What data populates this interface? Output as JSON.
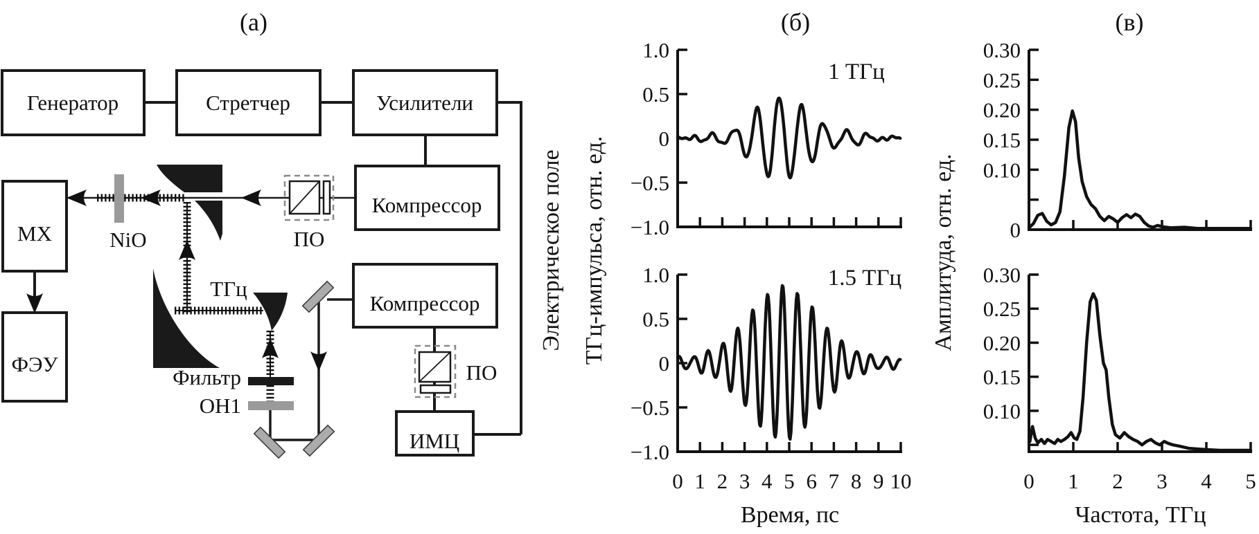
{
  "figure": {
    "panel_a_title": "(а)",
    "panel_b_title": "(б)",
    "panel_v_title": "(в)"
  },
  "diagram": {
    "generator": "Генератор",
    "stretcher": "Стретчер",
    "amplifiers": "Усилители",
    "compressor_top": "Компрессор",
    "compressor_bottom": "Компрессор",
    "mx": "МХ",
    "pmt": "ФЭУ",
    "imc": "ИМЦ",
    "nio": "NiO",
    "po_top": "ПО",
    "po_bottom": "ПО",
    "thz": "ТГц",
    "filter": "Фильтр",
    "oh1": "ОН1"
  },
  "chart_data": [
    {
      "panel": "(б)",
      "type": "line",
      "xlabel": "Время, пс",
      "ylabel": "Электрическое поле ТГц-импульса, отн. ед.",
      "ylabel_lines": [
        "Электрическое поле",
        "ТГц-импульса, отн. ед."
      ],
      "xlim": [
        0,
        10
      ],
      "xticks": [
        0,
        1,
        2,
        3,
        4,
        5,
        6,
        7,
        8,
        9,
        10
      ],
      "xtick_labels": [
        "0",
        "1",
        "2",
        "3",
        "4",
        "5",
        "6",
        "7",
        "8",
        "9",
        "10"
      ],
      "ylim": [
        -1,
        1
      ],
      "yticks": [
        1.0,
        0.5,
        0,
        -0.5,
        -1.0
      ],
      "ytick_labels": [
        "1.0",
        "0.5",
        "0",
        "−0.5",
        "−1.0"
      ],
      "grid": false,
      "plots": [
        {
          "annotation": "1 ТГц",
          "peak_field": 0.45,
          "min_field": -0.47,
          "signal": {
            "kind": "gaussian_wave_packet",
            "carrier_THz": 1.0,
            "carrier_center_ps": 4.55,
            "envelope_gaussians": [
              {
                "amp": 0.34,
                "center_ps": 4.55,
                "sigma_ps": 1.45
              },
              {
                "amp": 0.15,
                "center_ps": 5.2,
                "sigma_ps": 2.9
              }
            ],
            "noise": [
              {
                "amp": 0.018,
                "w": 9.1,
                "phase": 0.5
              },
              {
                "amp": 0.013,
                "w": 15.7,
                "phase": 2.0
              }
            ]
          }
        },
        {
          "annotation": "1.5 ТГц",
          "peak_field": 0.85,
          "min_field": -0.73,
          "signal": {
            "kind": "gaussian_wave_packet",
            "carrier_THz": 1.5,
            "carrier_center_ps": 4.7,
            "envelope_gaussians": [
              {
                "amp": 0.55,
                "center_ps": 4.8,
                "sigma_ps": 2.0
              },
              {
                "amp": 0.3,
                "center_ps": 4.6,
                "sigma_ps": 3.4
              }
            ],
            "noise": [
              {
                "amp": 0.022,
                "w": 8.3,
                "phase": 0.0
              },
              {
                "amp": 0.015,
                "w": 14.7,
                "phase": 1.0
              }
            ]
          }
        }
      ]
    },
    {
      "panel": "(в)",
      "type": "line",
      "xlabel": "Частота, ТГц",
      "ylabel": "Амплитуда, отн. ед.",
      "xlim": [
        0,
        5
      ],
      "xticks": [
        0,
        1,
        2,
        3,
        4,
        5
      ],
      "xtick_labels": [
        "0",
        "1",
        "2",
        "3",
        "4",
        "5"
      ],
      "grid": false,
      "plots": [
        {
          "ylim": [
            0,
            0.3
          ],
          "yticks": [
            0.3,
            0.25,
            0.2,
            0.15,
            0.1,
            0.05,
            0
          ],
          "ytick_labels": [
            "0.30",
            "0.25",
            "0.20",
            "0.15",
            "0.10",
            "",
            "0"
          ],
          "peak": {
            "freq_THz": 0.98,
            "amp": 0.198
          },
          "points": [
            [
              0.0,
              0.003
            ],
            [
              0.1,
              0.01
            ],
            [
              0.2,
              0.024
            ],
            [
              0.3,
              0.027
            ],
            [
              0.4,
              0.014
            ],
            [
              0.5,
              0.008
            ],
            [
              0.6,
              0.012
            ],
            [
              0.7,
              0.03
            ],
            [
              0.8,
              0.09
            ],
            [
              0.9,
              0.17
            ],
            [
              0.98,
              0.198
            ],
            [
              1.05,
              0.18
            ],
            [
              1.12,
              0.12
            ],
            [
              1.2,
              0.08
            ],
            [
              1.3,
              0.055
            ],
            [
              1.4,
              0.042
            ],
            [
              1.5,
              0.035
            ],
            [
              1.6,
              0.022
            ],
            [
              1.7,
              0.015
            ],
            [
              1.8,
              0.022
            ],
            [
              1.9,
              0.018
            ],
            [
              2.0,
              0.012
            ],
            [
              2.1,
              0.02
            ],
            [
              2.2,
              0.025
            ],
            [
              2.3,
              0.02
            ],
            [
              2.4,
              0.026
            ],
            [
              2.5,
              0.022
            ],
            [
              2.6,
              0.012
            ],
            [
              2.7,
              0.006
            ],
            [
              2.8,
              0.004
            ],
            [
              2.9,
              0.007
            ],
            [
              3.0,
              0.005
            ],
            [
              3.2,
              0.003
            ],
            [
              3.5,
              0.004
            ],
            [
              3.8,
              0.002
            ],
            [
              4.2,
              0.002
            ],
            [
              4.6,
              0.002
            ],
            [
              5.0,
              0.002
            ]
          ]
        },
        {
          "ylim": [
            0.04,
            0.3
          ],
          "yticks": [
            0.3,
            0.25,
            0.2,
            0.15,
            0.1,
            0.05
          ],
          "ytick_labels": [
            "0.30",
            "0.25",
            "0.20",
            "0.15",
            "0.10",
            ""
          ],
          "peak": {
            "freq_THz": 1.45,
            "amp": 0.272
          },
          "points": [
            [
              0.02,
              0.055
            ],
            [
              0.08,
              0.077
            ],
            [
              0.14,
              0.06
            ],
            [
              0.2,
              0.053
            ],
            [
              0.28,
              0.058
            ],
            [
              0.35,
              0.052
            ],
            [
              0.42,
              0.058
            ],
            [
              0.5,
              0.055
            ],
            [
              0.58,
              0.052
            ],
            [
              0.65,
              0.058
            ],
            [
              0.72,
              0.055
            ],
            [
              0.8,
              0.058
            ],
            [
              0.88,
              0.062
            ],
            [
              0.95,
              0.068
            ],
            [
              1.02,
              0.06
            ],
            [
              1.08,
              0.058
            ],
            [
              1.15,
              0.07
            ],
            [
              1.22,
              0.12
            ],
            [
              1.3,
              0.2
            ],
            [
              1.38,
              0.26
            ],
            [
              1.45,
              0.272
            ],
            [
              1.52,
              0.262
            ],
            [
              1.6,
              0.21
            ],
            [
              1.68,
              0.17
            ],
            [
              1.74,
              0.16
            ],
            [
              1.8,
              0.12
            ],
            [
              1.88,
              0.08
            ],
            [
              1.95,
              0.065
            ],
            [
              2.05,
              0.06
            ],
            [
              2.15,
              0.068
            ],
            [
              2.25,
              0.062
            ],
            [
              2.35,
              0.058
            ],
            [
              2.45,
              0.055
            ],
            [
              2.55,
              0.05
            ],
            [
              2.65,
              0.055
            ],
            [
              2.75,
              0.058
            ],
            [
              2.85,
              0.053
            ],
            [
              2.95,
              0.05
            ],
            [
              3.05,
              0.055
            ],
            [
              3.15,
              0.052
            ],
            [
              3.25,
              0.05
            ],
            [
              3.4,
              0.048
            ],
            [
              3.6,
              0.045
            ],
            [
              3.8,
              0.044
            ],
            [
              4.0,
              0.043
            ],
            [
              4.3,
              0.042
            ],
            [
              4.6,
              0.042
            ],
            [
              5.0,
              0.042
            ]
          ]
        }
      ]
    }
  ]
}
